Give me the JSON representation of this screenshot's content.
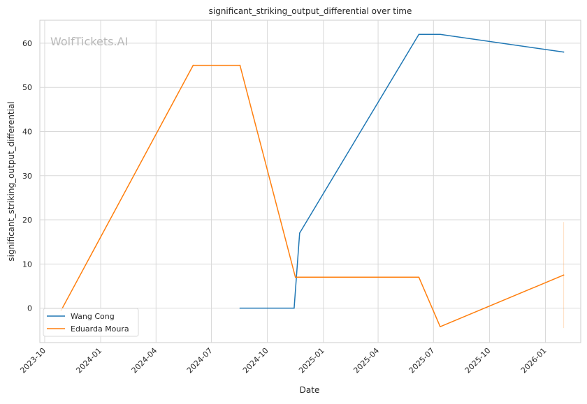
{
  "chart_data": {
    "type": "line",
    "title": "significant_striking_output_differential over time",
    "xlabel": "Date",
    "ylabel": "significant_striking_output_differential",
    "watermark": "WolfTickets.AI",
    "x_ticks": [
      "2023-10",
      "2024-01",
      "2024-04",
      "2024-07",
      "2024-10",
      "2025-01",
      "2025-04",
      "2025-07",
      "2025-10",
      "2026-01"
    ],
    "y_ticks": [
      0,
      10,
      20,
      30,
      40,
      50,
      60
    ],
    "xlim": [
      "2023-09-23",
      "2026-02-28"
    ],
    "ylim": [
      -7.8,
      65.2
    ],
    "grid": true,
    "legend_position": "lower-left",
    "series": [
      {
        "name": "Wang Cong",
        "color": "#1f77b4",
        "points": [
          {
            "x": "2024-08-17",
            "y": 0
          },
          {
            "x": "2024-11-14",
            "y": 0
          },
          {
            "x": "2024-11-23",
            "y": 17
          },
          {
            "x": "2025-06-07",
            "y": 62
          },
          {
            "x": "2025-07-12",
            "y": 62
          },
          {
            "x": "2026-01-31",
            "y": 58
          }
        ]
      },
      {
        "name": "Eduarda Moura",
        "color": "#ff7f0e",
        "points": [
          {
            "x": "2023-10-28",
            "y": -0.5
          },
          {
            "x": "2024-06-01",
            "y": 55
          },
          {
            "x": "2024-08-17",
            "y": 55
          },
          {
            "x": "2024-11-16",
            "y": 7
          },
          {
            "x": "2025-06-07",
            "y": 7
          },
          {
            "x": "2025-07-12",
            "y": -4.2
          },
          {
            "x": "2026-01-31",
            "y": 7.5
          }
        ],
        "error_band": {
          "x": "2026-01-31",
          "low": -4.5,
          "high": 19.5
        }
      }
    ]
  }
}
